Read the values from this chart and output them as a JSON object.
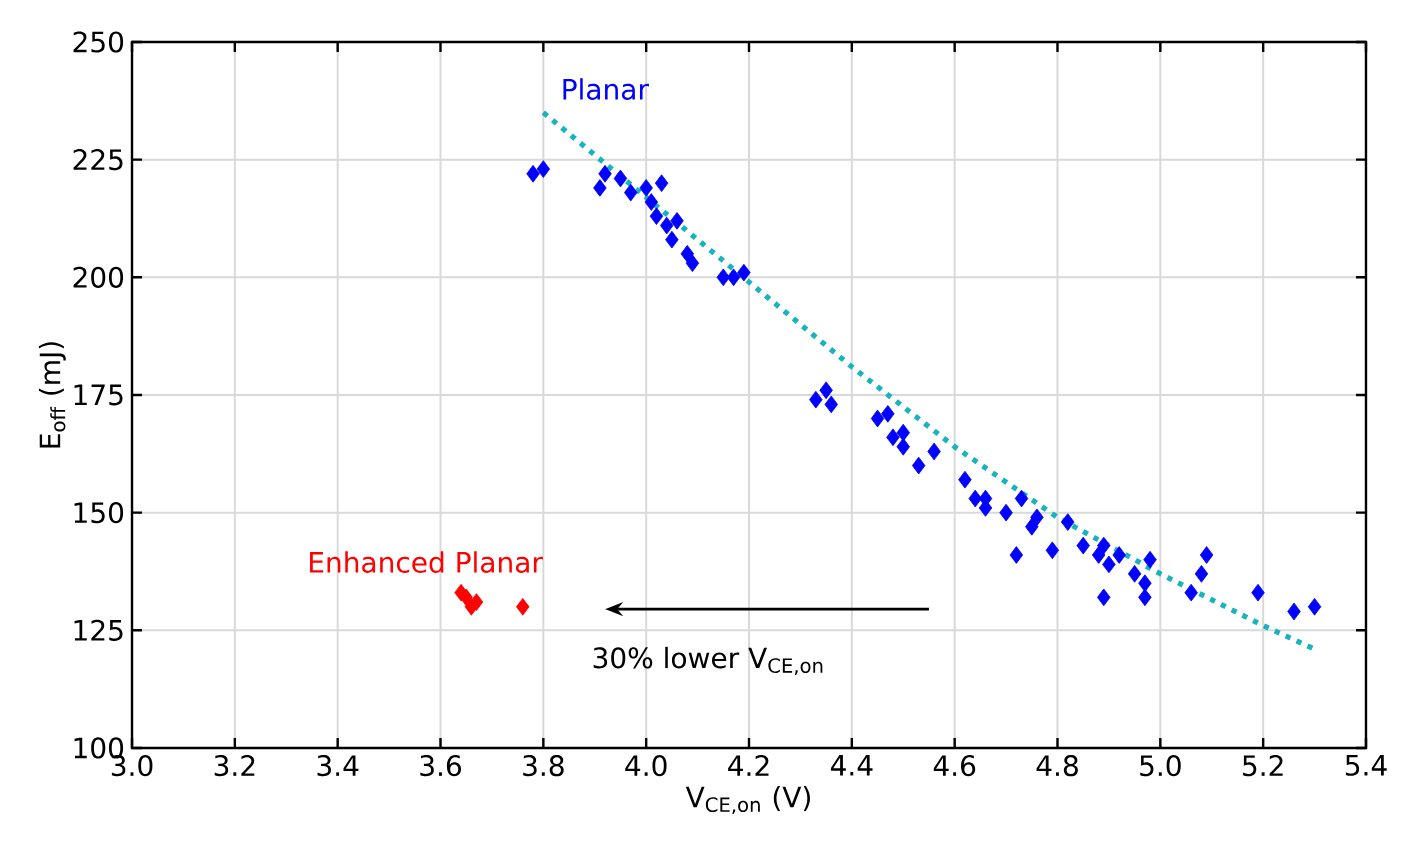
{
  "chart_data": {
    "type": "scatter",
    "xlabel": "V$_{CE,on}$ (V)",
    "ylabel": "E$_{off}$ (mJ)",
    "xlim": [
      3.0,
      5.4
    ],
    "xticks": [
      {
        "value": 3.0,
        "label": "3.0"
      },
      3.2,
      3.4,
      3.6,
      3.8,
      {
        "value": 4.0,
        "label": "4.0"
      },
      4.2,
      4.4,
      4.6,
      4.8,
      {
        "value": 5.0,
        "label": "5.0"
      },
      5.2,
      5.4
    ],
    "ylim": [
      100,
      250
    ],
    "yticks": [
      100,
      125,
      150,
      175,
      200,
      225,
      250
    ],
    "grid": true,
    "legend": false,
    "marker": "diamond",
    "series": [
      {
        "name": "Planar",
        "color": "#0000ff",
        "x": [
          3.78,
          3.8,
          3.91,
          3.92,
          3.95,
          3.97,
          4.0,
          4.01,
          4.03,
          4.02,
          4.04,
          4.05,
          4.06,
          4.08,
          4.09,
          4.15,
          4.17,
          4.19,
          4.33,
          4.35,
          4.36,
          4.45,
          4.47,
          4.48,
          4.5,
          4.5,
          4.53,
          4.56,
          4.62,
          4.64,
          4.66,
          4.66,
          4.7,
          4.72,
          4.73,
          4.76,
          4.75,
          4.79,
          4.82,
          4.85,
          4.88,
          4.89,
          4.89,
          4.9,
          4.92,
          4.95,
          4.97,
          4.97,
          4.98,
          5.06,
          5.08,
          5.09,
          5.19,
          5.26,
          5.3
        ],
        "values": [
          222,
          223,
          219,
          222,
          221,
          218,
          219,
          216,
          220,
          213,
          211,
          208,
          212,
          205,
          203,
          200,
          200,
          201,
          174,
          176,
          173,
          170,
          171,
          166,
          167,
          164,
          160,
          163,
          157,
          153,
          151,
          153,
          150,
          141,
          153,
          149,
          147,
          142,
          148,
          143,
          141,
          143,
          132,
          139,
          141,
          137,
          132,
          135,
          140,
          133,
          137,
          141,
          133,
          129,
          130
        ]
      },
      {
        "name": "Enhanced Planar",
        "color": "#ff0000",
        "x": [
          3.64,
          3.65,
          3.67,
          3.66,
          3.76
        ],
        "values": [
          133,
          132,
          131,
          130,
          130
        ]
      },
      {
        "type": "line",
        "color": "#17b3bf",
        "line_style": "dotted",
        "marker": "none",
        "x": [
          3.8,
          4.0,
          4.2,
          4.4,
          4.6,
          4.8,
          5.0,
          5.2,
          5.3
        ],
        "values": [
          235,
          217,
          199,
          181,
          164,
          149,
          137,
          126,
          121
        ]
      }
    ],
    "annotations": [
      "30% lower V$_{CE,on}$"
    ]
  }
}
